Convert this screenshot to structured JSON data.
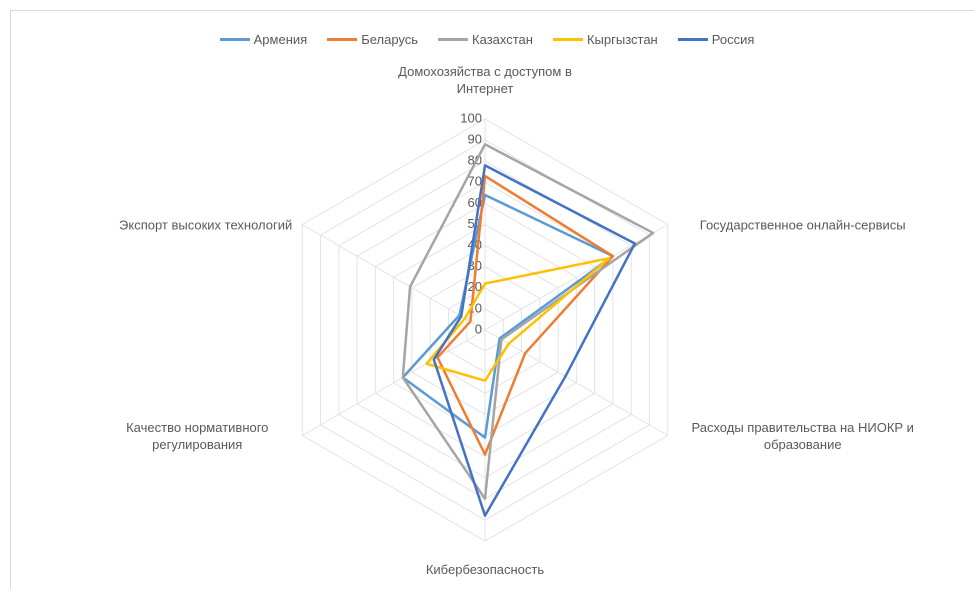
{
  "chart_data": {
    "type": "radar",
    "categories": [
      "Домохозяйства с доступом в Интернет",
      "Государственное онлайн-сервисы",
      "Расходы правительства на НИОКР и образование",
      "Кибербезопасность",
      "Качество нормативного регулирования",
      "Экспорт высоких технологий"
    ],
    "series": [
      {
        "name": "Армения",
        "color": "#5b9bd5",
        "values": [
          64,
          70,
          8,
          51,
          45,
          14
        ]
      },
      {
        "name": "Беларусь",
        "color": "#ed7d31",
        "values": [
          73,
          70,
          22,
          59,
          26,
          8
        ]
      },
      {
        "name": "Казахстан",
        "color": "#a5a5a5",
        "values": [
          88,
          92,
          9,
          80,
          45,
          41
        ]
      },
      {
        "name": "Кыргызстан",
        "color": "#ffc000",
        "values": [
          22,
          68,
          13,
          24,
          32,
          11
        ]
      },
      {
        "name": "Россия",
        "color": "#4472c4",
        "values": [
          78,
          82,
          44,
          88,
          28,
          13
        ]
      }
    ],
    "ylim": [
      0,
      100
    ],
    "yticks": [
      0,
      10,
      20,
      30,
      40,
      50,
      60,
      70,
      80,
      90,
      100
    ],
    "grid": true,
    "legend": "top"
  }
}
